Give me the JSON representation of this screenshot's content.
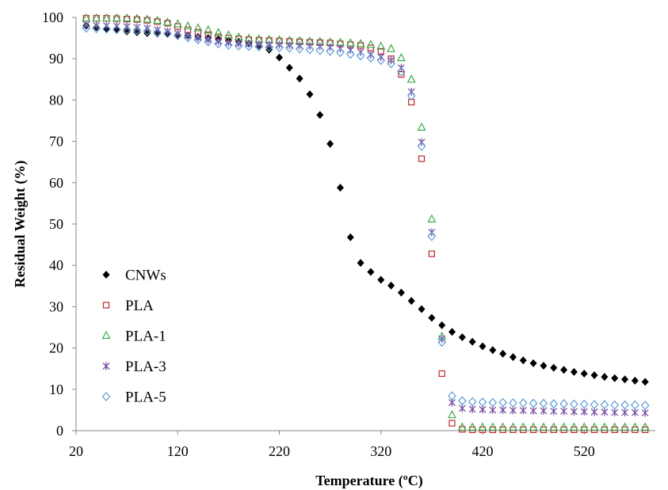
{
  "chart_data": {
    "type": "scatter",
    "xlabel": "Temperature (ºC)",
    "ylabel": "Residual Weight (%)",
    "xlim": [
      20,
      590
    ],
    "ylim": [
      0,
      100
    ],
    "xticks": [
      20,
      120,
      220,
      320,
      420,
      520
    ],
    "yticks": [
      0,
      10,
      20,
      30,
      40,
      50,
      60,
      70,
      80,
      90,
      100
    ],
    "grid": false,
    "legend_position": "bottom-left",
    "series": [
      {
        "name": "CNWs",
        "marker": "filled-diamond",
        "color": "#000000",
        "x": [
          30,
          40,
          50,
          60,
          70,
          80,
          90,
          100,
          110,
          120,
          130,
          140,
          150,
          160,
          170,
          180,
          190,
          200,
          210,
          220,
          230,
          240,
          250,
          260,
          270,
          280,
          290,
          300,
          310,
          320,
          330,
          340,
          350,
          360,
          370,
          380,
          390,
          400,
          410,
          420,
          430,
          440,
          450,
          460,
          470,
          480,
          490,
          500,
          510,
          520,
          530,
          540,
          550,
          560,
          570,
          580
        ],
        "y": [
          98,
          97.6,
          97.2,
          96.9,
          96.6,
          96.4,
          96.2,
          96.1,
          96,
          95.8,
          95.6,
          95.3,
          95,
          94.7,
          94.4,
          94.1,
          93.7,
          93.2,
          92.2,
          90.3,
          87.8,
          85.2,
          81.4,
          76.4,
          69.4,
          58.8,
          46.8,
          40.6,
          38.4,
          36.5,
          35.1,
          33.4,
          31.4,
          29.4,
          27.3,
          25.5,
          23.9,
          22.6,
          21.5,
          20.4,
          19.5,
          18.6,
          17.8,
          17,
          16.3,
          15.7,
          15.2,
          14.7,
          14.2,
          13.8,
          13.4,
          13,
          12.7,
          12.4,
          12.1,
          11.8
        ]
      },
      {
        "name": "PLA",
        "marker": "open-square",
        "color": "#c0282d",
        "x": [
          30,
          40,
          50,
          60,
          70,
          80,
          90,
          100,
          110,
          120,
          130,
          140,
          150,
          160,
          170,
          180,
          190,
          200,
          210,
          220,
          230,
          240,
          250,
          260,
          270,
          280,
          290,
          300,
          310,
          320,
          330,
          340,
          350,
          360,
          370,
          380,
          390,
          400,
          410,
          420,
          430,
          440,
          450,
          460,
          470,
          480,
          490,
          500,
          510,
          520,
          530,
          540,
          550,
          560,
          570,
          580
        ],
        "y": [
          99.8,
          99.8,
          99.8,
          99.7,
          99.6,
          99.5,
          99.3,
          99,
          98.6,
          97.8,
          97,
          96.4,
          95.8,
          95.3,
          95,
          94.8,
          94.6,
          94.5,
          94.4,
          94.3,
          94.2,
          94.1,
          94,
          93.9,
          93.8,
          93.6,
          93.4,
          93.2,
          92.6,
          91.8,
          90,
          86.2,
          79.5,
          65.8,
          42.8,
          13.8,
          1.8,
          0.3,
          0.2,
          0.2,
          0.2,
          0.2,
          0.2,
          0.2,
          0.2,
          0.2,
          0.2,
          0.2,
          0.2,
          0.2,
          0.2,
          0.2,
          0.2,
          0.2,
          0.2,
          0.2
        ]
      },
      {
        "name": "PLA-1",
        "marker": "open-triangle",
        "color": "#3faa4b",
        "x": [
          30,
          40,
          50,
          60,
          70,
          80,
          90,
          100,
          110,
          120,
          130,
          140,
          150,
          160,
          170,
          180,
          190,
          200,
          210,
          220,
          230,
          240,
          250,
          260,
          270,
          280,
          290,
          300,
          310,
          320,
          330,
          340,
          350,
          360,
          370,
          380,
          390,
          400,
          410,
          420,
          430,
          440,
          450,
          460,
          470,
          480,
          490,
          500,
          510,
          520,
          530,
          540,
          550,
          560,
          570,
          580
        ],
        "y": [
          99.8,
          99.8,
          99.8,
          99.8,
          99.8,
          99.7,
          99.5,
          99.2,
          98.8,
          98.4,
          97.9,
          97.4,
          96.9,
          96.3,
          95.7,
          95.2,
          94.9,
          94.7,
          94.6,
          94.5,
          94.4,
          94.3,
          94.2,
          94.1,
          94,
          93.9,
          93.8,
          93.6,
          93.4,
          93,
          92.4,
          90.2,
          85,
          73.4,
          51.2,
          22.8,
          3.8,
          0.8,
          0.8,
          0.8,
          0.8,
          0.8,
          0.8,
          0.8,
          0.8,
          0.8,
          0.8,
          0.8,
          0.8,
          0.8,
          0.8,
          0.8,
          0.8,
          0.8,
          0.8,
          0.8
        ]
      },
      {
        "name": "PLA-3",
        "marker": "asterisk",
        "color": "#7b4fa3",
        "x": [
          30,
          40,
          50,
          60,
          70,
          80,
          90,
          100,
          110,
          120,
          130,
          140,
          150,
          160,
          170,
          180,
          190,
          200,
          210,
          220,
          230,
          240,
          250,
          260,
          270,
          280,
          290,
          300,
          310,
          320,
          330,
          340,
          350,
          360,
          370,
          380,
          390,
          400,
          410,
          420,
          430,
          440,
          450,
          460,
          470,
          480,
          490,
          500,
          510,
          520,
          530,
          540,
          550,
          560,
          570,
          580
        ],
        "y": [
          98.2,
          98.1,
          98,
          97.9,
          97.8,
          97.6,
          97.4,
          97,
          96.6,
          96.1,
          95.6,
          95.1,
          94.6,
          94.2,
          93.9,
          93.7,
          93.6,
          93.5,
          93.4,
          93.4,
          93.3,
          93.2,
          93.1,
          93,
          92.8,
          92.5,
          92.1,
          91.6,
          91,
          90.4,
          89.6,
          87.8,
          82,
          69.8,
          48,
          22.2,
          6.8,
          5.4,
          5.2,
          5.1,
          5,
          5,
          4.9,
          4.9,
          4.8,
          4.8,
          4.7,
          4.7,
          4.6,
          4.6,
          4.5,
          4.5,
          4.4,
          4.4,
          4.4,
          4.3
        ]
      },
      {
        "name": "PLA-5",
        "marker": "open-diamond",
        "color": "#5b9bd5",
        "x": [
          30,
          40,
          50,
          60,
          70,
          80,
          90,
          100,
          110,
          120,
          130,
          140,
          150,
          160,
          170,
          180,
          190,
          200,
          210,
          220,
          230,
          240,
          250,
          260,
          270,
          280,
          290,
          300,
          310,
          320,
          330,
          340,
          350,
          360,
          370,
          380,
          390,
          400,
          410,
          420,
          430,
          440,
          450,
          460,
          470,
          480,
          490,
          500,
          510,
          520,
          530,
          540,
          550,
          560,
          570,
          580
        ],
        "y": [
          97.4,
          97.3,
          97.2,
          97.1,
          97,
          96.9,
          96.7,
          96.4,
          96.1,
          95.6,
          95.1,
          94.6,
          94.1,
          93.6,
          93.3,
          93.1,
          93,
          92.9,
          92.8,
          92.7,
          92.6,
          92.4,
          92.2,
          92,
          91.8,
          91.5,
          91.1,
          90.7,
          90.2,
          89.6,
          88.8,
          86.8,
          81,
          68.8,
          47,
          21.4,
          8.4,
          7.2,
          7,
          6.9,
          6.8,
          6.8,
          6.7,
          6.7,
          6.6,
          6.6,
          6.5,
          6.5,
          6.4,
          6.4,
          6.3,
          6.3,
          6.2,
          6.2,
          6.2,
          6.1
        ]
      }
    ]
  }
}
